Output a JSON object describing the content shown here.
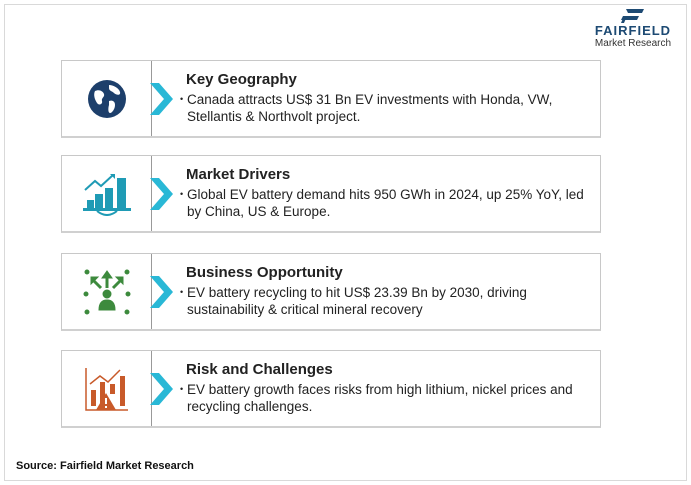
{
  "brand": {
    "name": "FAIRFIELD",
    "sub": "Market Research"
  },
  "rows": [
    {
      "title": "Key Geography",
      "text": "Canada attracts US$ 31 Bn EV investments with Honda, VW, Stellantis & Northvolt project."
    },
    {
      "title": "Market Drivers",
      "text": "Global EV battery demand hits 950 GWh in 2024, up 25% YoY, led by China, US & Europe."
    },
    {
      "title": "Business Opportunity",
      "text": "EV battery recycling to hit US$ 23.39 Bn by 2030, driving sustainability & critical mineral recovery"
    },
    {
      "title": "Risk and Challenges",
      "text": "EV battery growth faces risks from high lithium, nickel prices and recycling challenges."
    }
  ],
  "source": "Source: Fairfield Market Research",
  "colors": {
    "navy": "#1d3f6b",
    "teal": "#1f9bb5",
    "green": "#3d8a3d",
    "orange": "#c85a2a",
    "chevron": "#29b8d6"
  }
}
